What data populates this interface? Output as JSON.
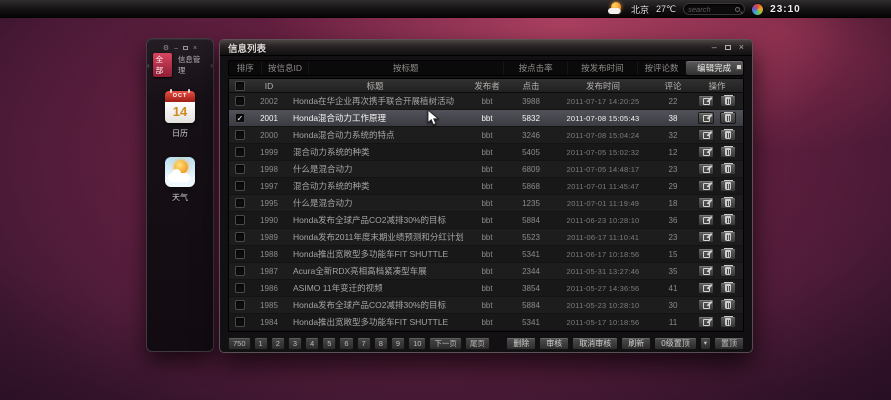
{
  "topbar": {
    "city": "北京",
    "temperature": "27℃",
    "search_placeholder": "search",
    "time": "23:10",
    "icons": {
      "weather": "sun-cloud-icon",
      "search": "search-icon",
      "app": "color-wheel-icon"
    }
  },
  "widget_panel": {
    "tabs": [
      {
        "label": "全部",
        "active": true
      },
      {
        "label": "信息管理",
        "active": false
      }
    ],
    "apps": [
      {
        "name": "calendar",
        "label": "日历",
        "month": "OCT",
        "day": "14"
      },
      {
        "name": "weather",
        "label": "天气"
      }
    ]
  },
  "window": {
    "title": "信息列表",
    "sort_tabs": [
      {
        "label": "排序",
        "active": false
      },
      {
        "label": "按信息ID",
        "active": false
      },
      {
        "label": "按标题",
        "active": false
      },
      {
        "label": "按点击率",
        "active": false
      },
      {
        "label": "按发布时间",
        "active": false
      },
      {
        "label": "按评论数",
        "active": false
      },
      {
        "label": "编辑完成",
        "active": true
      }
    ],
    "columns": [
      "ID",
      "标题",
      "发布者",
      "点击",
      "发布时间",
      "评论",
      "操作"
    ],
    "rows": [
      {
        "id": "2002",
        "title": "Honda在华企业再次携手联合开展植树活动",
        "publisher": "bbt",
        "clicks": "3988",
        "published": "2011-07-17 14:20:25",
        "comments": "22",
        "checked": false,
        "selected": false
      },
      {
        "id": "2001",
        "title": "Honda混合动力工作原理",
        "publisher": "bbt",
        "clicks": "5832",
        "published": "2011-07-08 15:05:43",
        "comments": "38",
        "checked": true,
        "selected": true
      },
      {
        "id": "2000",
        "title": "Honda混合动力系统的特点",
        "publisher": "bbt",
        "clicks": "3246",
        "published": "2011-07-08 15:04:24",
        "comments": "32",
        "checked": false,
        "selected": false
      },
      {
        "id": "1999",
        "title": "混合动力系统的种类",
        "publisher": "bbt",
        "clicks": "5405",
        "published": "2011-07-05 15:02:32",
        "comments": "12",
        "checked": false,
        "selected": false
      },
      {
        "id": "1998",
        "title": "什么是混合动力",
        "publisher": "bbt",
        "clicks": "6809",
        "published": "2011-07-05 14:48:17",
        "comments": "23",
        "checked": false,
        "selected": false
      },
      {
        "id": "1997",
        "title": "混合动力系统的种类",
        "publisher": "bbt",
        "clicks": "5868",
        "published": "2011-07-01 11:45:47",
        "comments": "29",
        "checked": false,
        "selected": false
      },
      {
        "id": "1995",
        "title": "什么是混合动力",
        "publisher": "bbt",
        "clicks": "1235",
        "published": "2011-07-01 11:19:49",
        "comments": "18",
        "checked": false,
        "selected": false
      },
      {
        "id": "1990",
        "title": "Honda发布全球产品CO2减排30%的目标",
        "publisher": "bbt",
        "clicks": "5884",
        "published": "2011-06-23 10:28:10",
        "comments": "36",
        "checked": false,
        "selected": false
      },
      {
        "id": "1989",
        "title": "Honda发布2011年度末期业绩预测和分红计划",
        "publisher": "bbt",
        "clicks": "5523",
        "published": "2011-06-17 11:10:41",
        "comments": "23",
        "checked": false,
        "selected": false
      },
      {
        "id": "1988",
        "title": "Honda推出宽敞型多功能车FIT SHUTTLE",
        "publisher": "bbt",
        "clicks": "5341",
        "published": "2011-06-17 10:18:56",
        "comments": "15",
        "checked": false,
        "selected": false
      },
      {
        "id": "1987",
        "title": "Acura全新RDX亮相高档紧凑型车展",
        "publisher": "bbt",
        "clicks": "2344",
        "published": "2011-05-31 13:27:46",
        "comments": "35",
        "checked": false,
        "selected": false
      },
      {
        "id": "1986",
        "title": "ASIMO 11年变迁的视频",
        "publisher": "bbt",
        "clicks": "3854",
        "published": "2011-05-27 14:36:56",
        "comments": "41",
        "checked": false,
        "selected": false
      },
      {
        "id": "1985",
        "title": "Honda发布全球产品CO2减排30%的目标",
        "publisher": "bbt",
        "clicks": "5884",
        "published": "2011-05-23 10:28:10",
        "comments": "30",
        "checked": false,
        "selected": false
      },
      {
        "id": "1984",
        "title": "Honda推出宽敞型多功能车FIT SHUTTLE",
        "publisher": "bbt",
        "clicks": "5341",
        "published": "2011-05-17 10:18:56",
        "comments": "11",
        "checked": false,
        "selected": false
      }
    ],
    "row_action_icons": [
      "edit-icon",
      "trash-icon"
    ],
    "pagination": {
      "total": "750",
      "pages": [
        "1",
        "2",
        "3",
        "4",
        "5",
        "6",
        "7",
        "8",
        "9",
        "10"
      ],
      "next": "下一页",
      "last": "尾页"
    },
    "actions": [
      {
        "label": "删除",
        "name": "delete-button"
      },
      {
        "label": "审核",
        "name": "audit-button"
      },
      {
        "label": "取消审核",
        "name": "cancel-audit-button"
      },
      {
        "label": "刷新",
        "name": "refresh-button"
      },
      {
        "label": "0级置顶",
        "name": "top-level-select",
        "dropdown": true
      },
      {
        "label": "置顶",
        "name": "set-top-button"
      }
    ]
  },
  "colors": {
    "accent_red": "#c22742",
    "selected_row": "#4a4a52",
    "desktop_magenta": "#a32e58",
    "active_tab": "#4f4f4f"
  }
}
